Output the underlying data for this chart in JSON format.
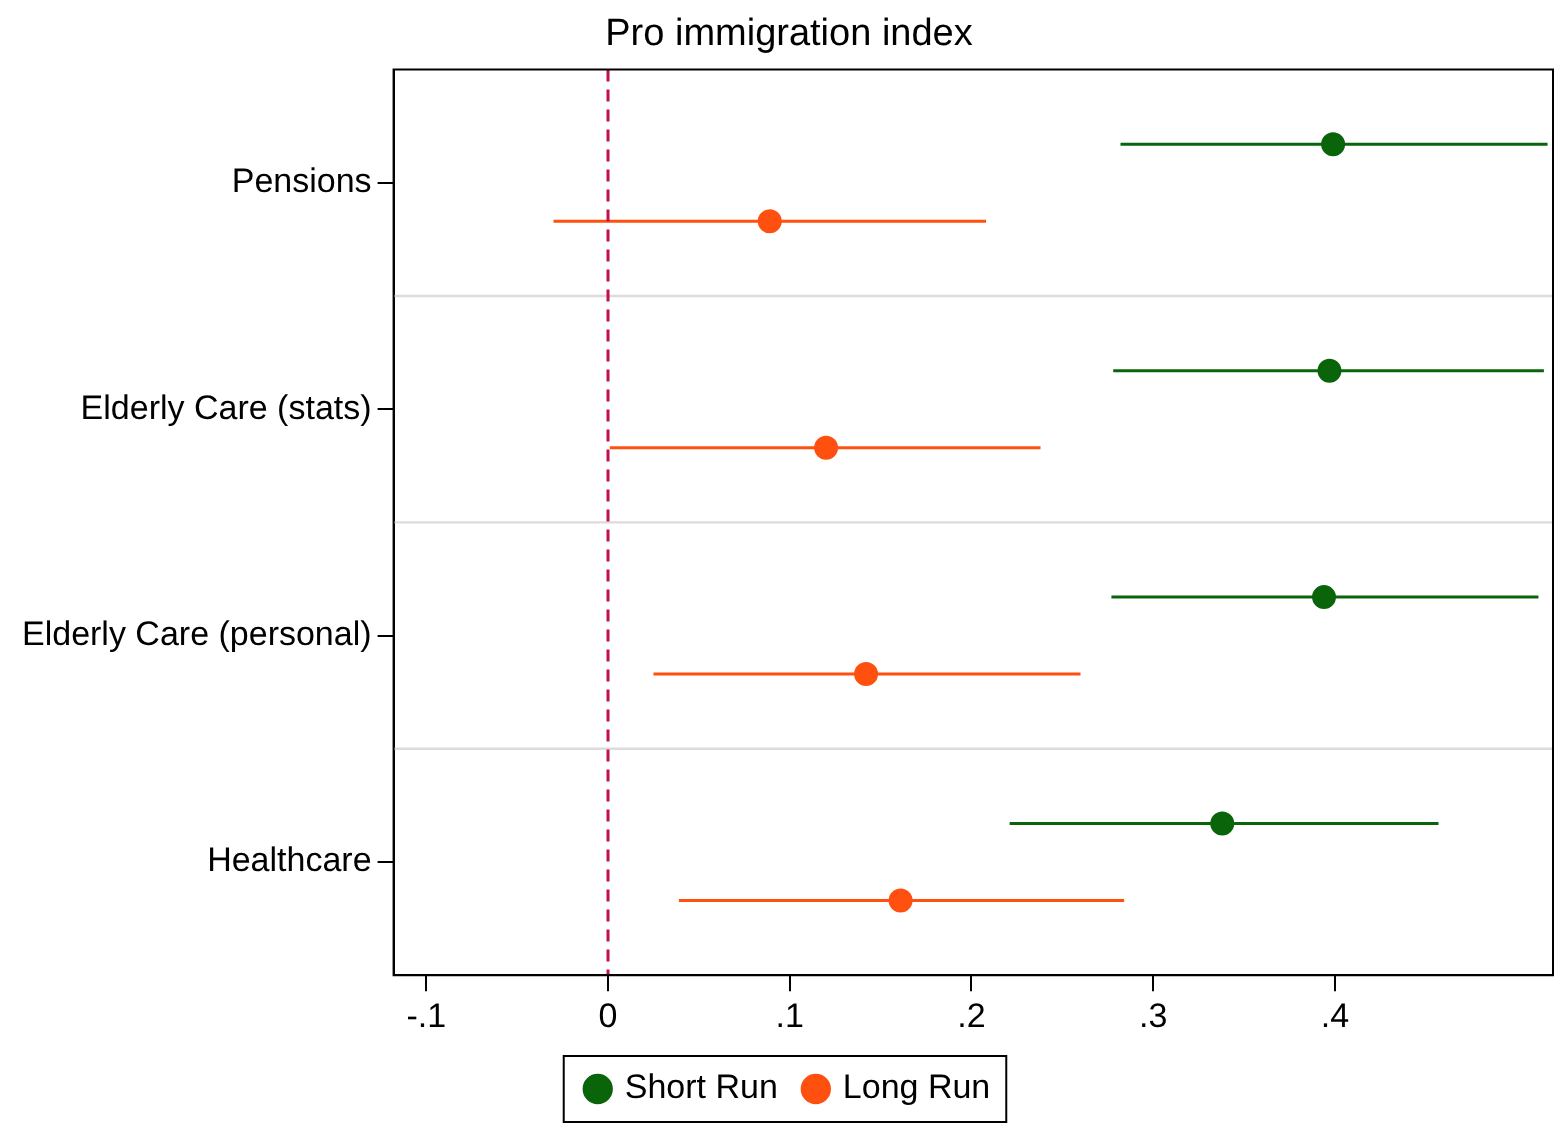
{
  "chart_data": {
    "type": "scatter",
    "orientation": "horizontal",
    "title": "Pro immigration index",
    "categories": [
      "Pensions",
      "Elderly Care (stats)",
      "Elderly Care (personal)",
      "Healthcare"
    ],
    "series": [
      {
        "name": "Short Run",
        "color": "#0a640a",
        "values": [
          0.399,
          0.397,
          0.394,
          0.338
        ],
        "errors": [
          [
            0.282,
            0.517
          ],
          [
            0.278,
            0.515
          ],
          [
            0.277,
            0.512
          ],
          [
            0.221,
            0.457
          ]
        ]
      },
      {
        "name": "Long Run",
        "color": "#ff5010",
        "values": [
          0.089,
          0.12,
          0.142,
          0.161
        ],
        "errors": [
          [
            -0.03,
            0.208
          ],
          [
            0.001,
            0.238
          ],
          [
            0.025,
            0.26
          ],
          [
            0.039,
            0.284
          ]
        ]
      }
    ],
    "xlim": [
      -0.118,
      0.52
    ],
    "xticks": [
      {
        "value": -0.1,
        "label": "-.1"
      },
      0,
      {
        "value": 0.1,
        "label": ".1"
      },
      {
        "value": 0.2,
        "label": ".2"
      },
      {
        "value": 0.3,
        "label": ".3"
      },
      {
        "value": 0.4,
        "label": ".4"
      }
    ],
    "ref_lines": [
      {
        "axis": "x",
        "value": 0,
        "color": "#c0104f",
        "line_style": "dashed"
      }
    ],
    "grid": "y",
    "legend": "bottom",
    "marker": "circle"
  }
}
